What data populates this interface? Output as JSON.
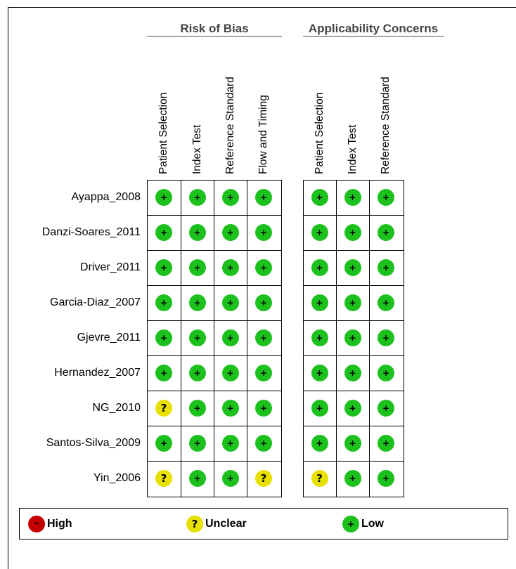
{
  "chart_data": {
    "type": "table",
    "groups": [
      {
        "title": "Risk of Bias",
        "domains": [
          "Patient Selection",
          "Index Test",
          "Reference Standard",
          "Flow and Timing"
        ]
      },
      {
        "title": "Applicability Concerns",
        "domains": [
          "Patient Selection",
          "Index Test",
          "Reference Standard"
        ]
      }
    ],
    "studies": [
      {
        "name": "Ayappa_2008",
        "risk": [
          "low",
          "low",
          "low",
          "low"
        ],
        "applicability": [
          "low",
          "low",
          "low"
        ]
      },
      {
        "name": "Danzi-Soares_2011",
        "risk": [
          "low",
          "low",
          "low",
          "low"
        ],
        "applicability": [
          "low",
          "low",
          "low"
        ]
      },
      {
        "name": "Driver_2011",
        "risk": [
          "low",
          "low",
          "low",
          "low"
        ],
        "applicability": [
          "low",
          "low",
          "low"
        ]
      },
      {
        "name": "Garcia-Diaz_2007",
        "risk": [
          "low",
          "low",
          "low",
          "low"
        ],
        "applicability": [
          "low",
          "low",
          "low"
        ]
      },
      {
        "name": "Gjevre_2011",
        "risk": [
          "low",
          "low",
          "low",
          "low"
        ],
        "applicability": [
          "low",
          "low",
          "low"
        ]
      },
      {
        "name": "Hernandez_2007",
        "risk": [
          "low",
          "low",
          "low",
          "low"
        ],
        "applicability": [
          "low",
          "low",
          "low"
        ]
      },
      {
        "name": "NG_2010",
        "risk": [
          "unclear",
          "low",
          "low",
          "low"
        ],
        "applicability": [
          "low",
          "low",
          "low"
        ]
      },
      {
        "name": "Santos-Silva_2009",
        "risk": [
          "low",
          "low",
          "low",
          "low"
        ],
        "applicability": [
          "low",
          "low",
          "low"
        ]
      },
      {
        "name": "Yin_2006",
        "risk": [
          "unclear",
          "low",
          "low",
          "unclear"
        ],
        "applicability": [
          "unclear",
          "low",
          "low"
        ]
      }
    ],
    "symbols": {
      "low": "+",
      "unclear": "?",
      "high": "–"
    },
    "legend": [
      {
        "key": "high",
        "label": "High"
      },
      {
        "key": "unclear",
        "label": "Unclear"
      },
      {
        "key": "low",
        "label": "Low"
      }
    ],
    "colors": {
      "low": "#1dc11d",
      "unclear": "#e7e000",
      "high": "#c40000"
    }
  }
}
